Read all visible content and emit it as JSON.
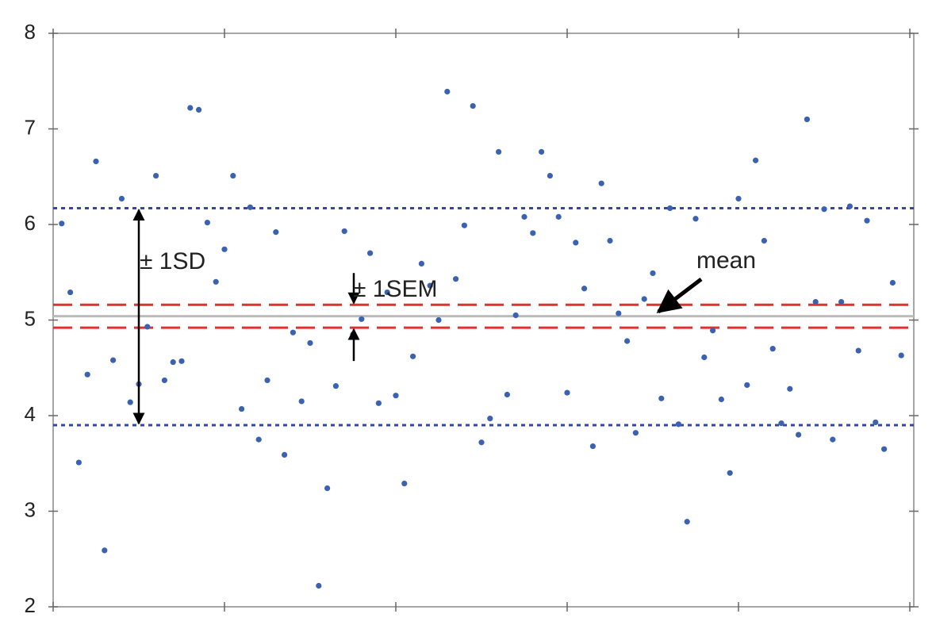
{
  "chart_data": {
    "type": "scatter",
    "x": [
      1,
      2,
      3,
      4,
      5,
      6,
      7,
      8,
      9,
      10,
      11,
      12,
      13,
      14,
      15,
      16,
      17,
      18,
      19,
      20,
      21,
      22,
      23,
      24,
      25,
      26,
      27,
      28,
      29,
      30,
      31,
      32,
      33,
      34,
      35,
      36,
      37,
      38,
      39,
      40,
      41,
      42,
      43,
      44,
      45,
      46,
      47,
      48,
      49,
      50,
      51,
      52,
      53,
      54,
      55,
      56,
      57,
      58,
      59,
      60,
      61,
      62,
      63,
      64,
      65,
      66,
      67,
      68,
      69,
      70,
      71,
      72,
      73,
      74,
      75,
      76,
      77,
      78,
      79,
      80,
      81,
      82,
      83,
      84,
      85,
      86,
      87,
      88,
      89,
      90,
      91,
      92,
      93,
      94,
      95,
      96,
      97,
      98,
      99
    ],
    "series": [
      {
        "color": "#3a62b0",
        "values": [
          6.01,
          5.29,
          3.51,
          4.43,
          6.66,
          2.59,
          4.58,
          6.27,
          4.14,
          4.33,
          4.93,
          6.51,
          4.37,
          4.56,
          4.57,
          7.22,
          7.2,
          6.02,
          5.4,
          5.74,
          6.51,
          4.07,
          6.18,
          3.75,
          4.37,
          5.92,
          3.59,
          4.87,
          4.15,
          4.76,
          2.22,
          3.24,
          4.31,
          5.93,
          4.85,
          5.01,
          5.7,
          4.13,
          5.29,
          4.21,
          3.29,
          4.62,
          5.59,
          5.36,
          5.0,
          7.39,
          5.43,
          5.99,
          7.24,
          3.72,
          3.97,
          6.76,
          4.22,
          5.05,
          6.08,
          5.91,
          6.76,
          6.51,
          6.08,
          4.24,
          5.81,
          5.33,
          3.68,
          6.43,
          5.83,
          5.07,
          4.78,
          3.82,
          5.22,
          5.49,
          4.18,
          6.17,
          3.91,
          2.89,
          6.06,
          4.61,
          4.89,
          4.17,
          3.4,
          6.27,
          4.32,
          6.67,
          5.83,
          4.7,
          3.92,
          4.28,
          3.8,
          7.1,
          5.19,
          6.16,
          3.75,
          5.19,
          6.19,
          4.68,
          6.04,
          3.93,
          3.65,
          5.39,
          4.63
        ]
      }
    ],
    "xlim": [
      0,
      100
    ],
    "xticks": [
      0,
      20,
      40,
      60,
      80,
      100
    ],
    "ylim": [
      2,
      8
    ],
    "yticks": [
      2,
      3,
      4,
      5,
      6,
      7,
      8
    ],
    "lines": [
      {
        "value": 5.04,
        "color": "#bbbbbb",
        "style": "solid"
      },
      {
        "value": 5.16,
        "color": "#e03030",
        "style": "dashed"
      },
      {
        "value": 4.92,
        "color": "#e03030",
        "style": "dashed"
      },
      {
        "value": 6.17,
        "color": "#3344aa",
        "style": "dotted"
      },
      {
        "value": 3.9,
        "color": "#3344aa",
        "style": "dotted"
      }
    ],
    "annotations": [
      "± 1SD",
      "± 1SEM",
      "mean"
    ]
  }
}
